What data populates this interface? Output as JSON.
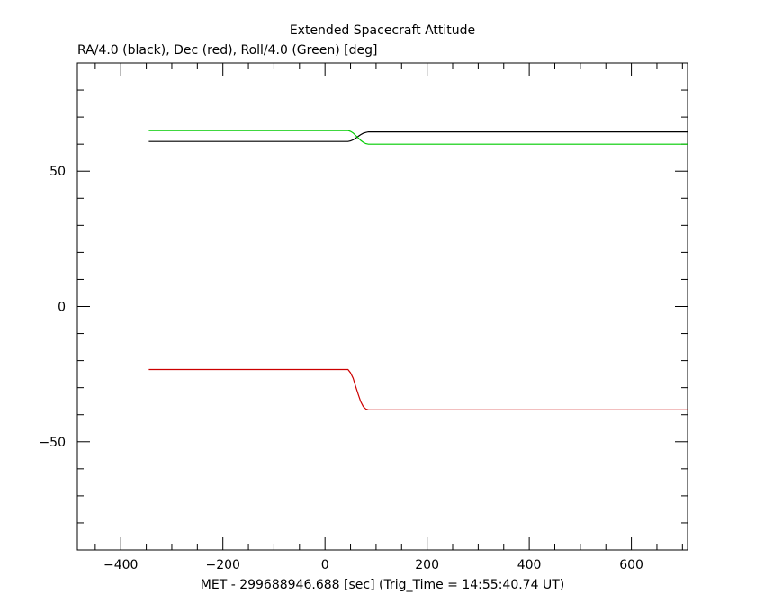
{
  "chart_data": {
    "type": "line",
    "title": "Extended Spacecraft Attitude",
    "subtitle": "RA/4.0 (black), Dec (red), Roll/4.0 (Green) [deg]",
    "xlabel": "MET - 299688946.688 [sec] (Trig_Time = 14:55:40.74 UT)",
    "ylabel": "",
    "xlim": [
      -485,
      710
    ],
    "ylim": [
      -90,
      90
    ],
    "x_ticks": [
      -400,
      -200,
      0,
      200,
      400,
      600
    ],
    "x_tick_labels": [
      "−400",
      "−200",
      "0",
      "200",
      "400",
      "600"
    ],
    "y_ticks": [
      -50,
      0,
      50
    ],
    "y_tick_labels": [
      "−50",
      "0",
      "50"
    ],
    "grid": false,
    "series": [
      {
        "color": "#000000",
        "x": [
          -345,
          45,
          50,
          55,
          60,
          65,
          70,
          75,
          80,
          85,
          710
        ],
        "y": [
          61.0,
          61.0,
          61.2,
          61.6,
          62.2,
          62.9,
          63.5,
          64.0,
          64.3,
          64.5,
          64.5
        ]
      },
      {
        "color": "#cc0000",
        "x": [
          -345,
          45,
          50,
          55,
          60,
          65,
          70,
          75,
          80,
          85,
          710
        ],
        "y": [
          -23.3,
          -23.3,
          -24.5,
          -26.5,
          -29.5,
          -32.5,
          -35.2,
          -37.0,
          -37.9,
          -38.2,
          -38.2
        ]
      },
      {
        "color": "#00cc00",
        "x": [
          -345,
          45,
          50,
          55,
          60,
          65,
          70,
          75,
          80,
          85,
          710
        ],
        "y": [
          65.0,
          65.0,
          64.7,
          64.1,
          63.2,
          62.3,
          61.4,
          60.7,
          60.2,
          60.0,
          60.0
        ]
      }
    ]
  }
}
